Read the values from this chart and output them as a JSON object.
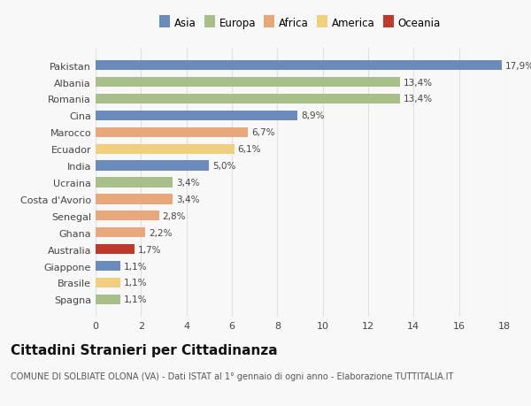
{
  "categories": [
    "Pakistan",
    "Albania",
    "Romania",
    "Cina",
    "Marocco",
    "Ecuador",
    "India",
    "Ucraina",
    "Costa d'Avorio",
    "Senegal",
    "Ghana",
    "Australia",
    "Giappone",
    "Brasile",
    "Spagna"
  ],
  "values": [
    17.9,
    13.4,
    13.4,
    8.9,
    6.7,
    6.1,
    5.0,
    3.4,
    3.4,
    2.8,
    2.2,
    1.7,
    1.1,
    1.1,
    1.1
  ],
  "labels": [
    "17,9%",
    "13,4%",
    "13,4%",
    "8,9%",
    "6,7%",
    "6,1%",
    "5,0%",
    "3,4%",
    "3,4%",
    "2,8%",
    "2,2%",
    "1,7%",
    "1,1%",
    "1,1%",
    "1,1%"
  ],
  "colors": [
    "#6b8cba",
    "#a8bf8a",
    "#a8bf8a",
    "#6b8cba",
    "#e8a87c",
    "#f0d080",
    "#6b8cba",
    "#a8bf8a",
    "#e8a87c",
    "#e8a87c",
    "#e8a87c",
    "#c0392b",
    "#6b8cba",
    "#f0d080",
    "#a8bf8a"
  ],
  "legend_labels": [
    "Asia",
    "Europa",
    "Africa",
    "America",
    "Oceania"
  ],
  "legend_colors": [
    "#6b8cba",
    "#a8bf8a",
    "#e8a87c",
    "#f0d080",
    "#c0392b"
  ],
  "title": "Cittadini Stranieri per Cittadinanza",
  "subtitle": "COMUNE DI SOLBIATE OLONA (VA) - Dati ISTAT al 1° gennaio di ogni anno - Elaborazione TUTTITALIA.IT",
  "xlim": [
    0,
    18
  ],
  "xticks": [
    0,
    2,
    4,
    6,
    8,
    10,
    12,
    14,
    16,
    18
  ],
  "background_color": "#f8f8f8",
  "grid_color": "#e0e0e0",
  "bar_height": 0.6,
  "label_fontsize": 7.5,
  "title_fontsize": 11,
  "subtitle_fontsize": 7,
  "tick_fontsize": 8,
  "ytick_fontsize": 8
}
